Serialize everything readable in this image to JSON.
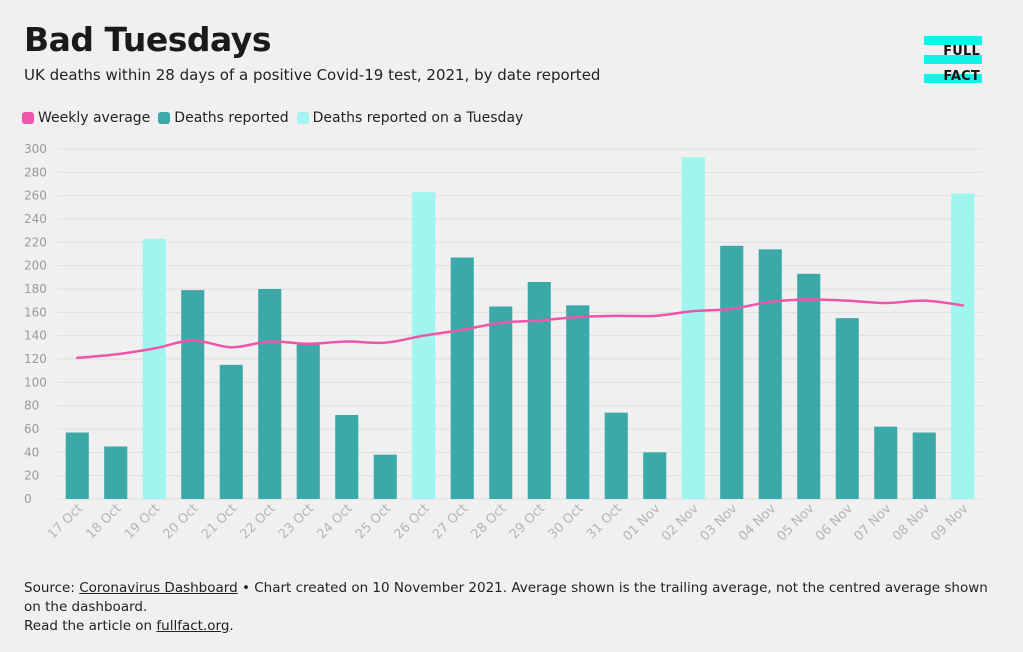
{
  "header": {
    "title": "Bad Tuesdays",
    "subtitle": "UK deaths within 28 days of a positive Covid-19 test, 2021, by date reported"
  },
  "logo": {
    "line1": "FULL",
    "line2": "FACT"
  },
  "legend": [
    {
      "label": "Weekly average",
      "color": "#ef55a8"
    },
    {
      "label": "Deaths reported",
      "color": "#3ba9a8"
    },
    {
      "label": "Deaths reported on a Tuesday",
      "color": "#a1f5ef"
    }
  ],
  "footer": {
    "source_prefix": "Source: ",
    "source_link": "Coronavirus Dashboard",
    "source_rest": " • Chart created on 10 November 2021. Average shown is the trailing average, not the centred average shown on the dashboard.",
    "read_prefix": "Read the article on ",
    "read_link": "fullfact.org",
    "read_suffix": "."
  },
  "chart_data": {
    "type": "bar",
    "categories": [
      "17 Oct",
      "18 Oct",
      "19 Oct",
      "20 Oct",
      "21 Oct",
      "22 Oct",
      "23 Oct",
      "24 Oct",
      "25 Oct",
      "26 Oct",
      "27 Oct",
      "28 Oct",
      "29 Oct",
      "30 Oct",
      "31 Oct",
      "01 Nov",
      "02 Nov",
      "03 Nov",
      "04 Nov",
      "05 Nov",
      "06 Nov",
      "07 Nov",
      "08 Nov",
      "09 Nov"
    ],
    "series": [
      {
        "name": "Deaths reported",
        "values": [
          57,
          45,
          223,
          179,
          115,
          180,
          134,
          72,
          38,
          263,
          207,
          165,
          186,
          166,
          74,
          40,
          293,
          217,
          214,
          193,
          155,
          62,
          57,
          262
        ],
        "color": "#3ba9a8",
        "tuesday_color": "#a1f5ef",
        "tuesdays": [
          false,
          false,
          true,
          false,
          false,
          false,
          false,
          false,
          false,
          true,
          false,
          false,
          false,
          false,
          false,
          false,
          true,
          false,
          false,
          false,
          false,
          false,
          false,
          true
        ]
      },
      {
        "name": "Weekly average",
        "type": "line",
        "values": [
          121,
          124,
          129,
          136,
          130,
          135,
          133,
          135,
          134,
          140,
          145,
          151,
          153,
          156,
          157,
          157,
          161,
          163,
          169,
          171,
          170,
          168,
          170,
          166
        ],
        "color": "#ef55a8"
      }
    ],
    "ylim": [
      0,
      300
    ],
    "yticks": [
      0,
      20,
      40,
      60,
      80,
      100,
      120,
      140,
      160,
      180,
      200,
      220,
      240,
      260,
      280,
      300
    ],
    "grid": true,
    "legend_position": "top-left"
  }
}
